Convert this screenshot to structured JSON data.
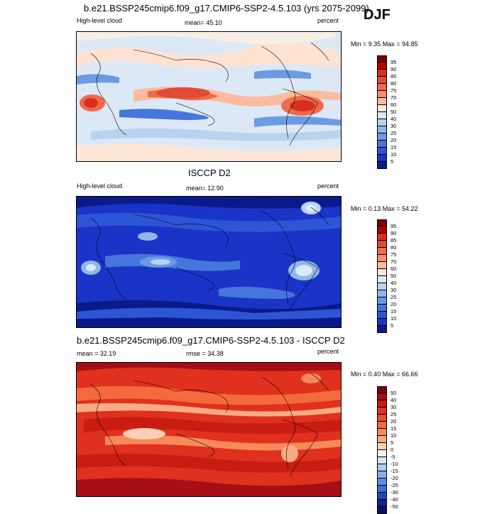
{
  "header": {
    "title": "b.e21.BSSP245cmip6.f09_g17.CMIP6-SSP2-4.5.103 (yrs 2075-2099)",
    "season": "DJF"
  },
  "panels": [
    {
      "id": "model",
      "left_label": "High-level cloud",
      "center_label": "mean=  45.10",
      "right_label": "percent",
      "minmax": "Min =   9.35 Max =  94.85",
      "colorbar": {
        "labels": [
          "95",
          "90",
          "85",
          "80",
          "75",
          "70",
          "60",
          "50",
          "40",
          "30",
          "25",
          "20",
          "15",
          "10",
          "5"
        ],
        "colors": [
          "#7f0000",
          "#b30000",
          "#d7301f",
          "#e34a33",
          "#f16a4a",
          "#fc8d6e",
          "#fdbb9e",
          "#fde6d8",
          "#dbe8f7",
          "#b8d3f0",
          "#8fb8ea",
          "#6a9be3",
          "#4676dc",
          "#2d56d6",
          "#1a34c8",
          "#0a1a8a"
        ]
      }
    },
    {
      "id": "obs",
      "subtitle": "ISCCP D2",
      "left_label": "High-level cloud",
      "center_label": "mean=  12.90",
      "right_label": "percent",
      "minmax": "Min =   0.13 Max =  54.22",
      "colorbar": {
        "labels": [
          "95",
          "90",
          "85",
          "80",
          "75",
          "70",
          "60",
          "50",
          "40",
          "30",
          "25",
          "20",
          "15",
          "10",
          "5"
        ],
        "colors": [
          "#7f0000",
          "#b30000",
          "#d7301f",
          "#e34a33",
          "#f16a4a",
          "#fc8d6e",
          "#fdbb9e",
          "#fde6d8",
          "#dbe8f7",
          "#b8d3f0",
          "#8fb8ea",
          "#6a9be3",
          "#4676dc",
          "#2d56d6",
          "#1a34c8",
          "#0a1a8a"
        ]
      }
    },
    {
      "id": "diff",
      "subtitle": "b.e21.BSSP245cmip6.f09_g17.CMIP6-SSP2-4.5.103 - ISCCP D2",
      "left_label": "mean =  32.19",
      "center_label": "rmse =  34.38",
      "right_label": "percent",
      "minmax": "Min =   0.40 Max =  66.66",
      "colorbar": {
        "labels": [
          "50",
          "40",
          "30",
          "25",
          "20",
          "15",
          "10",
          "5",
          "0",
          "-5",
          "-10",
          "-15",
          "-20",
          "-25",
          "-30",
          "-40",
          "-50"
        ],
        "colors": [
          "#7f0000",
          "#a50f15",
          "#c81d12",
          "#e0301e",
          "#ef4a2a",
          "#f46a3f",
          "#f88a5a",
          "#fbac82",
          "#fdd0b5",
          "#f2f2f2",
          "#d4e2f5",
          "#aecbee",
          "#86b0e6",
          "#5f90dd",
          "#3d6fd4",
          "#2448b8",
          "#14278f",
          "#0a1466"
        ]
      }
    }
  ]
}
